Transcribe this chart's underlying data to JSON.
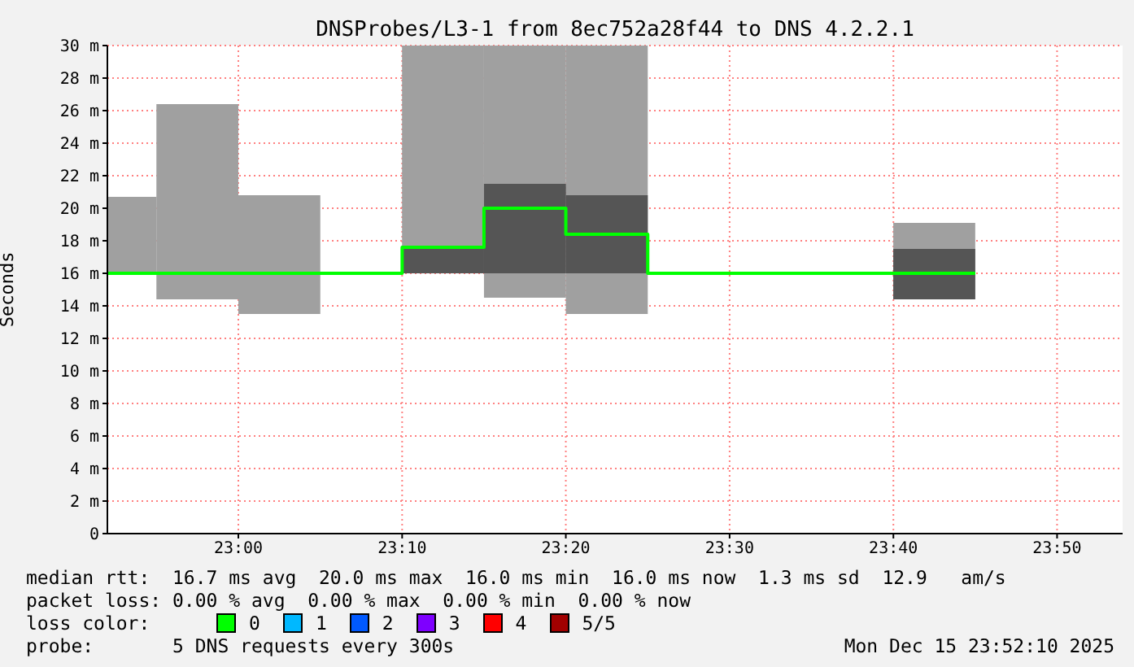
{
  "chart_data": {
    "type": "bar",
    "title": "DNSProbes/L3-1 from 8ec752a28f44 to DNS 4.2.2.1",
    "ylabel": "Seconds",
    "xlim": [
      22.8667,
      23.9
    ],
    "xticks": [
      {
        "value": 23,
        "label": "23:00"
      },
      {
        "value": 23.1667,
        "label": "23:10"
      },
      {
        "value": 23.3333,
        "label": "23:20"
      },
      {
        "value": 23.5,
        "label": "23:30"
      },
      {
        "value": 23.6667,
        "label": "23:40"
      },
      {
        "value": 23.8333,
        "label": "23:50"
      }
    ],
    "ylim": [
      0,
      30
    ],
    "yticks": [
      0,
      {
        "value": 2,
        "label": "2 m"
      },
      {
        "value": 4,
        "label": "4 m"
      },
      {
        "value": 6,
        "label": "6 m"
      },
      {
        "value": 8,
        "label": "8 m"
      },
      {
        "value": 10,
        "label": "10 m"
      },
      {
        "value": 12,
        "label": "12 m"
      },
      {
        "value": 14,
        "label": "14 m"
      },
      {
        "value": 16,
        "label": "16 m"
      },
      {
        "value": 18,
        "label": "18 m"
      },
      {
        "value": 20,
        "label": "20 m"
      },
      {
        "value": 22,
        "label": "22 m"
      },
      {
        "value": 24,
        "label": "24 m"
      },
      {
        "value": 26,
        "label": "26 m"
      },
      {
        "value": 28,
        "label": "28 m"
      },
      {
        "value": 30,
        "label": "30 m"
      }
    ],
    "grid": true,
    "legend": "bottom",
    "legend_title": "loss color:",
    "series": [
      {
        "color": "#a0a0a0",
        "x": [
          22.875,
          22.9583,
          23.0417,
          23.2083,
          23.2917,
          23.375,
          23.7083
        ],
        "base": [
          16,
          14.4,
          13.5,
          16,
          14.5,
          13.5,
          14.4
        ],
        "values": [
          4.7,
          12.0,
          7.3,
          14,
          15.5,
          16.5,
          4.7
        ]
      },
      {
        "color": "#555555",
        "x": [
          23.2083,
          23.2917,
          23.375,
          23.7083
        ],
        "base": [
          16,
          16,
          16,
          14.4
        ],
        "values": [
          1.6,
          5.5,
          4.8,
          3.1
        ]
      },
      {
        "type": "step",
        "name": "0",
        "color": "#00ff00",
        "x": [
          22.8667,
          22.9167,
          23.0,
          23.0833,
          23.1667,
          23.25,
          23.3333,
          23.4167,
          23.5,
          23.5833,
          23.6667,
          23.75
        ],
        "values": [
          16,
          16,
          16,
          16,
          17.6,
          20,
          18.4,
          16,
          16,
          16,
          16,
          16
        ]
      },
      {
        "type": "step",
        "name": "1",
        "color": "#00b8ff"
      },
      {
        "type": "step",
        "name": "2",
        "color": "#0059ff"
      },
      {
        "type": "step",
        "name": "3",
        "color": "#7e00ff"
      },
      {
        "type": "step",
        "name": "4",
        "color": "#ff0000"
      },
      {
        "type": "step",
        "name": "5/5",
        "color": "#a10000"
      }
    ],
    "annotations": [
      "median rtt:  16.7 ms avg  20.0 ms max  16.0 ms min  16.0 ms now  1.3 ms sd  12.9   am/s",
      "packet loss: 0.00 % avg  0.00 % max  0.00 % min  0.00 % now",
      "probe:       5 DNS requests every 300s",
      "Mon Dec 15 23:52:10 2025"
    ]
  }
}
